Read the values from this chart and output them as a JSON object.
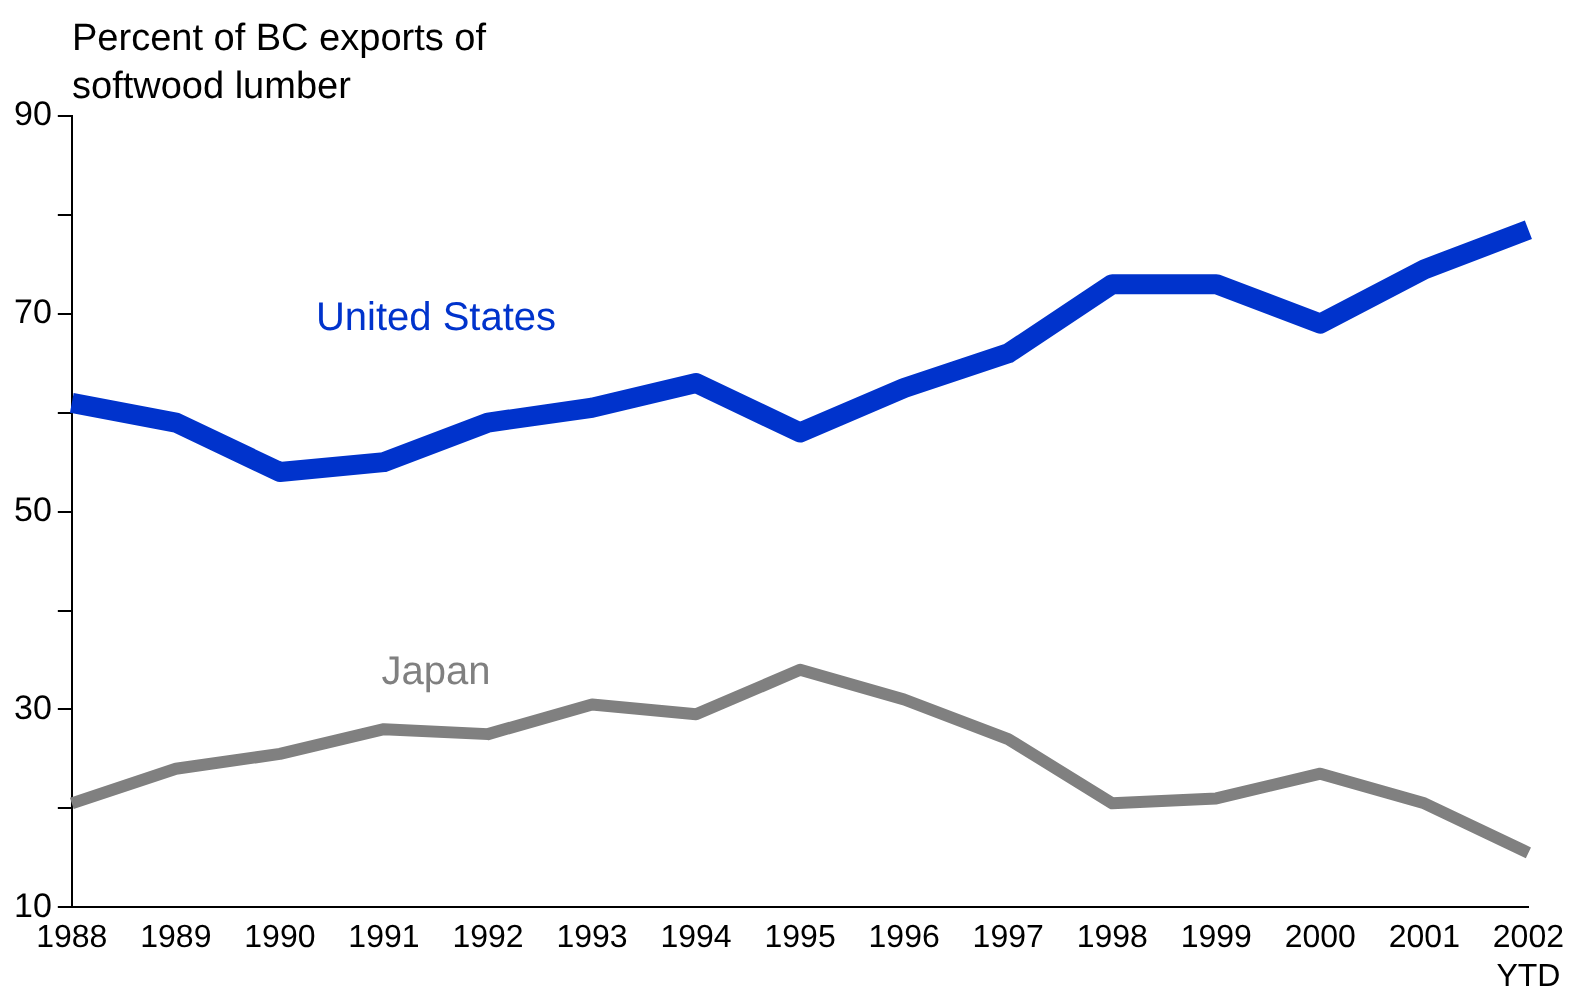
{
  "chart_data": {
    "type": "line",
    "ylabel": "Percent of BC exports of softwood lumber",
    "categories": [
      "1988",
      "1989",
      "1990",
      "1991",
      "1992",
      "1993",
      "1994",
      "1995",
      "1996",
      "1997",
      "1998",
      "1999",
      "2000",
      "2001",
      "2002 YTD"
    ],
    "series": [
      {
        "name": "United States",
        "color": "#0033cc",
        "values": [
          61,
          59,
          54,
          55,
          59,
          60.5,
          63,
          58,
          62.5,
          66,
          73,
          73,
          69,
          74.5,
          78.5
        ]
      },
      {
        "name": "Japan",
        "color": "#808080",
        "values": [
          20.5,
          24,
          25.5,
          28,
          27.5,
          30.5,
          29.5,
          34,
          31,
          27,
          20.5,
          21,
          23.5,
          20.5,
          15.5
        ]
      }
    ],
    "ylim": [
      10,
      90
    ],
    "yticks": [
      10,
      {
        "value": 20,
        "label": null
      },
      30,
      {
        "value": 40,
        "label": null
      },
      50,
      {
        "value": 60,
        "label": null
      },
      70,
      {
        "value": 80,
        "label": null
      },
      90
    ],
    "grid": false,
    "legend": false,
    "marker": "none",
    "line_style": "solid"
  }
}
